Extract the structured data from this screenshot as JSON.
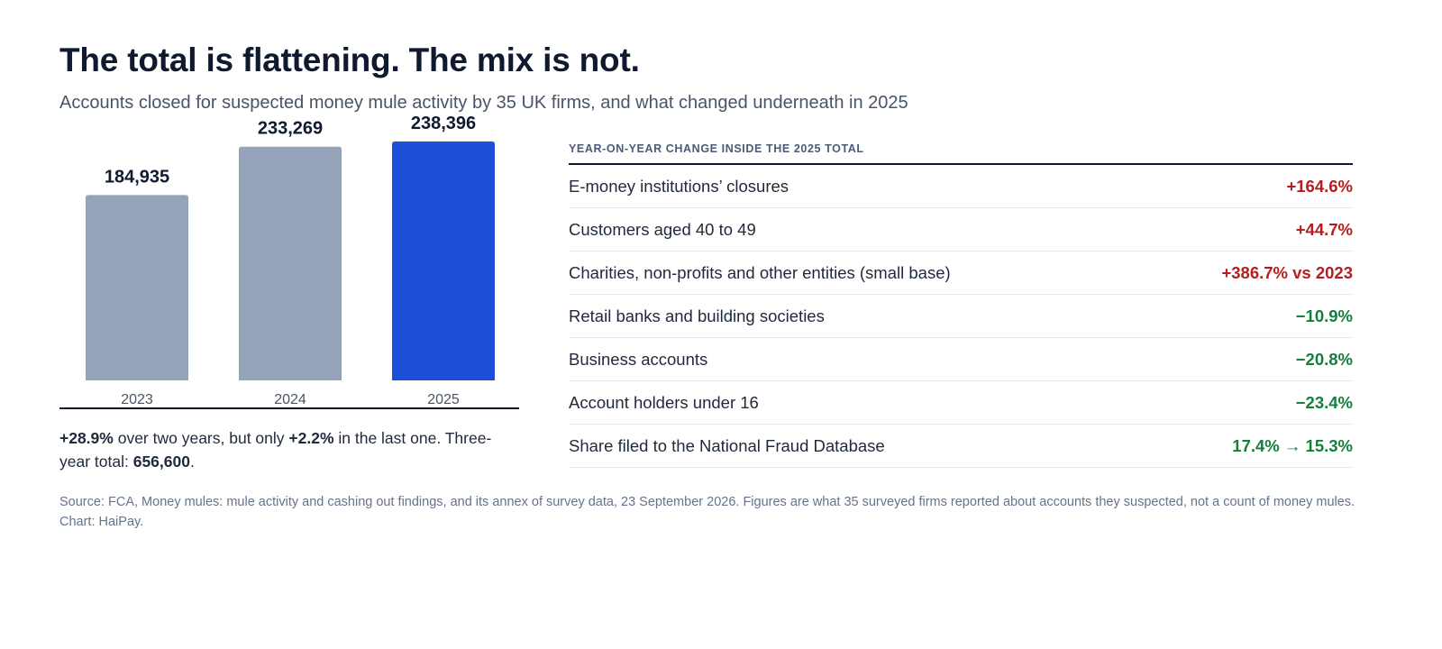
{
  "header": {
    "title": "The total is flattening. The mix is not.",
    "subtitle": "Accounts closed for suspected money mule activity by 35 UK firms, and what changed underneath in 2025"
  },
  "chart_data": {
    "type": "bar",
    "categories": [
      "2023",
      "2024",
      "2025"
    ],
    "values": [
      184935,
      233269,
      238396
    ],
    "value_labels": [
      "184,935",
      "233,269",
      "238,396"
    ],
    "highlight_category": "2025",
    "colors": {
      "default": "#94a3b8",
      "highlight": "#1d4ed8"
    },
    "grid": false,
    "legend": "none"
  },
  "chart_note": {
    "change_two_years": "+28.9%",
    "text_1": " over two years, but only ",
    "change_last_year": "+2.2%",
    "text_2": " in the last one. Three-year total: ",
    "three_year_total": "656,600",
    "text_3": "."
  },
  "table": {
    "heading": "Year-on-year change inside the 2025 total",
    "rows": [
      {
        "label": "E-money institutions’ closures",
        "value": "+164.6%",
        "color": "#b91c1c"
      },
      {
        "label": "Customers aged 40 to 49",
        "value": "+44.7%",
        "color": "#b91c1c"
      },
      {
        "label": "Charities, non-profits and other entities (small base)",
        "value": "+386.7% vs 2023",
        "color": "#b91c1c"
      },
      {
        "label": "Retail banks and building societies",
        "value": "−10.9%",
        "color": "#15803d"
      },
      {
        "label": "Business accounts",
        "value": "−20.8%",
        "color": "#15803d"
      },
      {
        "label": "Account holders under 16",
        "value": "−23.4%",
        "color": "#15803d"
      },
      {
        "label": "Share filed to the National Fraud Database",
        "value": "17.4% → 15.3%",
        "color": "#15803d"
      }
    ]
  },
  "footer": {
    "source": "Source: FCA, Money mules: mule activity and cashing out findings, and its annex of survey data, 23 September 2026. Figures are what 35 surveyed firms reported about accounts they suspected, not a count of money mules. Chart: HaiPay."
  }
}
